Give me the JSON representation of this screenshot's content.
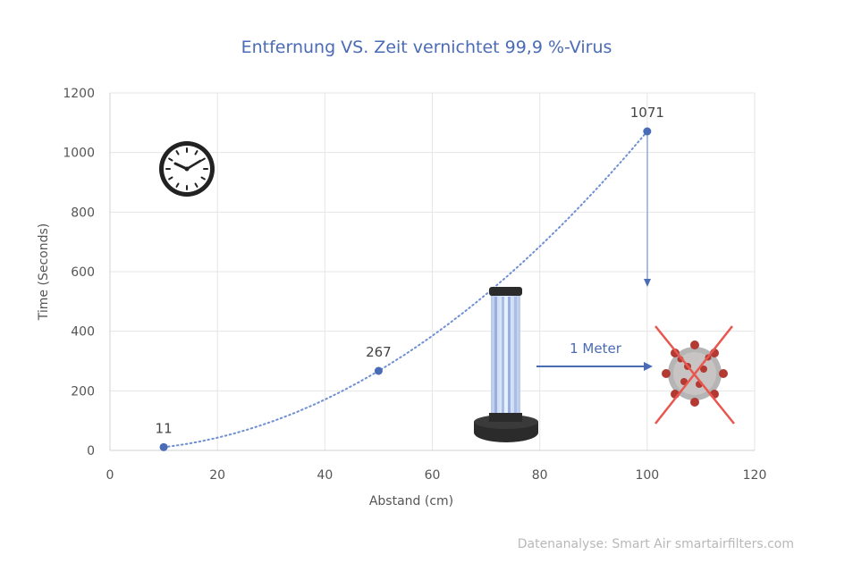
{
  "chart_data": {
    "type": "scatter",
    "title": "Entfernung VS. Zeit vernichtet 99,9 %-Virus",
    "xlabel": "Abstand (cm)",
    "ylabel": "Time (Seconds)",
    "xlim": [
      0,
      120
    ],
    "ylim": [
      0,
      1200
    ],
    "xticks": [
      0,
      20,
      40,
      60,
      80,
      100,
      120
    ],
    "yticks": [
      0,
      200,
      400,
      600,
      800,
      1000,
      1200
    ],
    "grid": true,
    "trendline": "dotted",
    "points": [
      {
        "x": 10,
        "y": 11,
        "label": "11"
      },
      {
        "x": 50,
        "y": 267,
        "label": "267"
      },
      {
        "x": 100,
        "y": 1071,
        "label": "1071"
      }
    ],
    "annotation": "1 Meter",
    "source": "Datenanalyse: Smart Air smartairfilters.com",
    "colors": {
      "series": "#4a6bb5",
      "grid": "#e6e6e6",
      "cross": "#e8574f"
    },
    "icons": [
      "clock-icon",
      "uv-lamp-icon",
      "virus-icon"
    ]
  }
}
